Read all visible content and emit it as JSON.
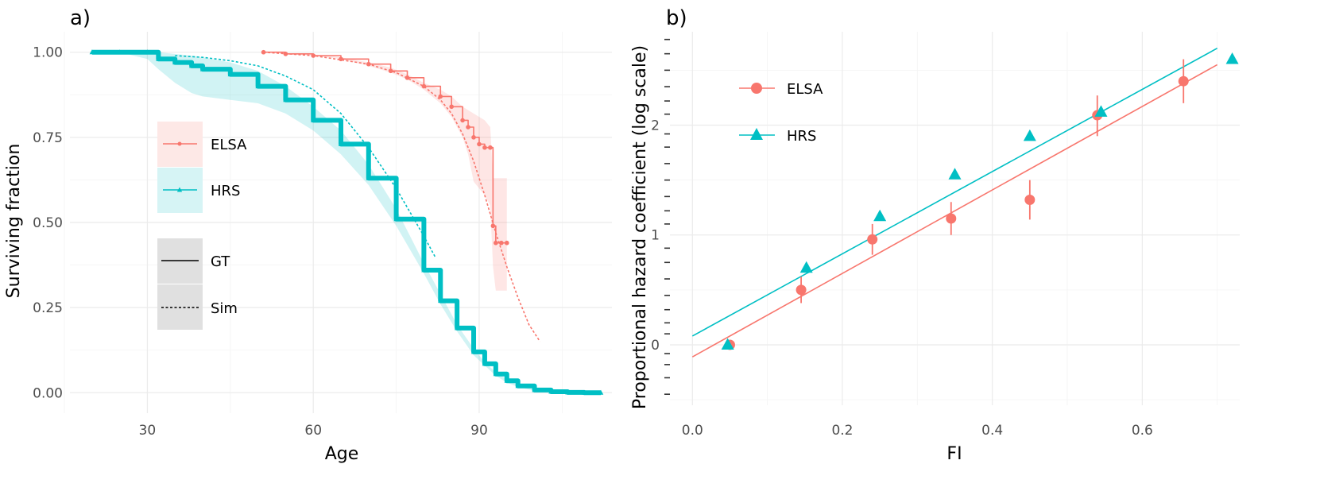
{
  "colors": {
    "elsa": "#f8766d",
    "hrs": "#00bfc4",
    "grid": "#ebebeb",
    "text": "#4d4d4d"
  },
  "chart_data": [
    {
      "type": "line",
      "panel_label": "a)",
      "title": "",
      "xlabel": "Age",
      "ylabel": "Surviving fraction",
      "xlim": [
        16,
        114
      ],
      "ylim": [
        -0.06,
        1.06
      ],
      "x_ticks": [
        "30",
        "60",
        "90"
      ],
      "x_tick_values": [
        30,
        60,
        90
      ],
      "y_ticks": [
        "0.00",
        "0.25",
        "0.50",
        "0.75",
        "1.00"
      ],
      "y_tick_values": [
        0,
        0.25,
        0.5,
        0.75,
        1.0
      ],
      "grid": true,
      "legend_position": "inside-left",
      "legend": {
        "color_entries": [
          "ELSA",
          "HRS"
        ],
        "linetype_entries": [
          "GT",
          "Sim"
        ]
      },
      "series": [
        {
          "name": "ELSA",
          "linetype": "GT",
          "marker": "circle",
          "x": [
            51,
            55,
            60,
            65,
            70,
            74,
            77,
            80,
            83,
            85,
            87,
            88,
            89,
            90,
            91,
            92,
            92.5,
            93,
            94,
            95
          ],
          "y": [
            1.0,
            0.995,
            0.99,
            0.98,
            0.965,
            0.945,
            0.925,
            0.9,
            0.87,
            0.84,
            0.8,
            0.78,
            0.75,
            0.73,
            0.72,
            0.72,
            0.49,
            0.44,
            0.44,
            0.44
          ],
          "ci_low": [
            1.0,
            0.995,
            0.99,
            0.98,
            0.96,
            0.94,
            0.92,
            0.89,
            0.85,
            0.81,
            0.75,
            0.7,
            0.62,
            0.6,
            0.58,
            0.55,
            0.37,
            0.3,
            0.3,
            0.3
          ],
          "ci_high": [
            1.0,
            0.997,
            0.992,
            0.985,
            0.97,
            0.955,
            0.935,
            0.91,
            0.89,
            0.87,
            0.84,
            0.83,
            0.82,
            0.81,
            0.8,
            0.78,
            0.63,
            0.63,
            0.63,
            0.63
          ]
        },
        {
          "name": "ELSA",
          "linetype": "Sim",
          "x": [
            51,
            60,
            70,
            75,
            80,
            83,
            85,
            87,
            89,
            91,
            93,
            95,
            97,
            99,
            101
          ],
          "y": [
            1.0,
            0.99,
            0.965,
            0.94,
            0.9,
            0.86,
            0.82,
            0.76,
            0.68,
            0.58,
            0.47,
            0.37,
            0.28,
            0.2,
            0.15
          ]
        },
        {
          "name": "HRS",
          "linetype": "GT",
          "marker": "triangle",
          "x": [
            20,
            25,
            30,
            32,
            35,
            38,
            40,
            45,
            50,
            55,
            60,
            65,
            70,
            75,
            80,
            83,
            86,
            89,
            91,
            93,
            95,
            97,
            100,
            103,
            106,
            109,
            112
          ],
          "y": [
            1.0,
            1.0,
            1.0,
            0.98,
            0.97,
            0.96,
            0.95,
            0.935,
            0.9,
            0.86,
            0.8,
            0.73,
            0.63,
            0.51,
            0.36,
            0.27,
            0.19,
            0.12,
            0.085,
            0.055,
            0.035,
            0.02,
            0.008,
            0.003,
            0.001,
            0.0,
            0.0
          ],
          "ci_low": [
            1.0,
            1.0,
            0.98,
            0.95,
            0.91,
            0.88,
            0.87,
            0.86,
            0.85,
            0.82,
            0.77,
            0.7,
            0.61,
            0.49,
            0.35,
            0.26,
            0.18,
            0.11,
            0.08,
            0.05,
            0.03,
            0.017,
            0.006,
            0.002,
            0.0,
            0.0,
            0.0
          ],
          "ci_high": [
            1.0,
            1.0,
            1.0,
            1.0,
            0.995,
            0.99,
            0.985,
            0.97,
            0.945,
            0.9,
            0.84,
            0.77,
            0.67,
            0.54,
            0.38,
            0.29,
            0.2,
            0.13,
            0.09,
            0.06,
            0.04,
            0.023,
            0.01,
            0.004,
            0.002,
            0.001,
            0.001
          ]
        },
        {
          "name": "HRS",
          "linetype": "Sim",
          "x": [
            35,
            40,
            45,
            50,
            55,
            60,
            65,
            70,
            75,
            80,
            82
          ],
          "y": [
            0.99,
            0.985,
            0.975,
            0.96,
            0.93,
            0.89,
            0.82,
            0.72,
            0.6,
            0.46,
            0.4
          ]
        }
      ]
    },
    {
      "type": "scatter",
      "panel_label": "b)",
      "title": "",
      "xlabel": "FI",
      "ylabel": "Proportional hazard coefficient (log scale)",
      "xlim": [
        -0.03,
        0.73
      ],
      "ylim": [
        -0.55,
        2.85
      ],
      "x_ticks": [
        "0.0",
        "0.2",
        "0.4",
        "0.6"
      ],
      "x_tick_values": [
        0.0,
        0.2,
        0.4,
        0.6
      ],
      "y_ticks": [
        "0",
        "1",
        "2"
      ],
      "y_tick_values": [
        0,
        1,
        2
      ],
      "grid": true,
      "legend_position": "top-left",
      "legend": {
        "entries": [
          "ELSA",
          "HRS"
        ]
      },
      "series": [
        {
          "name": "ELSA",
          "marker": "circle",
          "x": [
            0.05,
            0.145,
            0.24,
            0.345,
            0.45,
            0.54,
            0.655
          ],
          "y": [
            0.0,
            0.5,
            0.96,
            1.15,
            1.32,
            2.09,
            2.4
          ],
          "err_low": [
            0.0,
            0.38,
            0.82,
            1.0,
            1.14,
            1.9,
            2.2
          ],
          "err_high": [
            0.0,
            0.62,
            1.1,
            1.3,
            1.5,
            2.27,
            2.6
          ],
          "fit": {
            "x": [
              0.0,
              0.7
            ],
            "y": [
              -0.11,
              2.55
            ]
          }
        },
        {
          "name": "HRS",
          "marker": "triangle",
          "x": [
            0.047,
            0.152,
            0.25,
            0.35,
            0.45,
            0.545,
            0.72
          ],
          "y": [
            0.0,
            0.7,
            1.17,
            1.55,
            1.9,
            2.12,
            2.6
          ],
          "fit": {
            "x": [
              0.0,
              0.7
            ],
            "y": [
              0.08,
              2.7
            ]
          }
        }
      ]
    }
  ]
}
